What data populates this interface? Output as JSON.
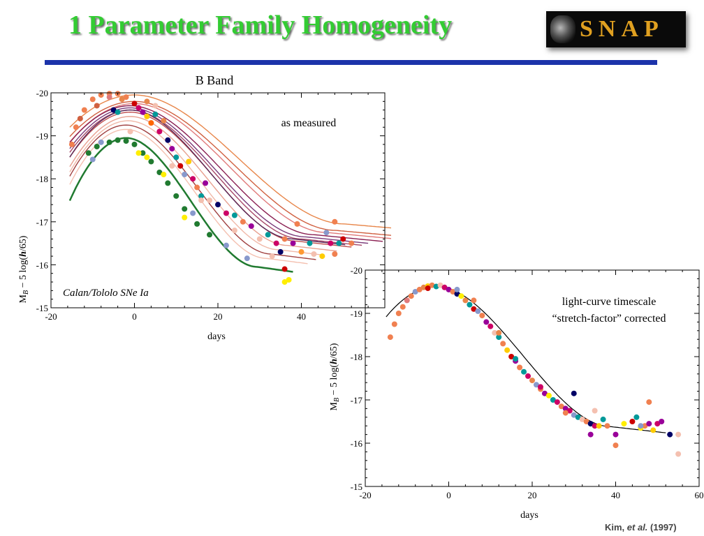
{
  "slide": {
    "title": "1 Parameter Family Homogeneity",
    "logo_text": "SNAP",
    "title_color": "#33cc33",
    "rule_color": "#1c33aa",
    "citation_author": "Kim, ",
    "citation_etal": "et al.",
    "citation_year": " (1997)"
  },
  "chart_data": [
    {
      "type": "scatter",
      "title": "B Band",
      "annotation": "as measured",
      "inset_label": "Calan/Tololo SNe Ia",
      "xlabel": "days",
      "ylabel": "M_B − 5 log(h/65)",
      "xlim": [
        -20,
        60
      ],
      "ylim": [
        -15,
        -20
      ],
      "xticks": [
        "-20",
        "0",
        "20",
        "40"
      ],
      "yticks": [
        "-20",
        "-19",
        "-18",
        "-17",
        "-16",
        "-15"
      ],
      "curves": [
        {
          "color": "#e8864a",
          "peak": -19.95,
          "t0": 0.0,
          "s": 1.2
        },
        {
          "color": "#d06040",
          "peak": -19.8,
          "t0": 0.0,
          "s": 1.15
        },
        {
          "color": "#e07a7a",
          "peak": -19.75,
          "t0": 0.0,
          "s": 1.1
        },
        {
          "color": "#8a1f52",
          "peak": -19.7,
          "t0": -1.0,
          "s": 1.05
        },
        {
          "color": "#7a3a7a",
          "peak": -19.65,
          "t0": -1.0,
          "s": 1.0
        },
        {
          "color": "#a84a6a",
          "peak": -19.6,
          "t0": -1.0,
          "s": 0.98
        },
        {
          "color": "#c05050",
          "peak": -19.55,
          "t0": -1.0,
          "s": 0.95
        },
        {
          "color": "#5a2a5a",
          "peak": -19.6,
          "t0": -1.0,
          "s": 0.93
        },
        {
          "color": "#e8a090",
          "peak": -19.45,
          "t0": -1.0,
          "s": 0.9
        },
        {
          "color": "#f0b8a8",
          "peak": -19.35,
          "t0": -1.5,
          "s": 0.86
        },
        {
          "color": "#a04040",
          "peak": -19.25,
          "t0": -2.0,
          "s": 0.83
        },
        {
          "color": "#f4c0b0",
          "peak": -19.15,
          "t0": -2.0,
          "s": 0.8
        },
        {
          "color": "#207a30",
          "peak": -18.95,
          "t0": -2.0,
          "s": 0.75
        }
      ],
      "points": [
        {
          "x": -15,
          "y": -18.8,
          "c": "#f08050"
        },
        {
          "x": -14,
          "y": -19.2,
          "c": "#f08050"
        },
        {
          "x": -12,
          "y": -19.6,
          "c": "#f08050"
        },
        {
          "x": -10,
          "y": -19.85,
          "c": "#f08050"
        },
        {
          "x": -8,
          "y": -19.95,
          "c": "#f08050"
        },
        {
          "x": -6,
          "y": -19.98,
          "c": "#f08050"
        },
        {
          "x": -4,
          "y": -19.98,
          "c": "#f08050"
        },
        {
          "x": -2,
          "y": -19.9,
          "c": "#f08050"
        },
        {
          "x": -13,
          "y": -19.4,
          "c": "#d06040"
        },
        {
          "x": -9,
          "y": -19.7,
          "c": "#d06040"
        },
        {
          "x": -6,
          "y": -19.9,
          "c": "#e07a7a"
        },
        {
          "x": -3,
          "y": -19.85,
          "c": "#e8864a"
        },
        {
          "x": -5,
          "y": -19.6,
          "c": "#000066"
        },
        {
          "x": -4,
          "y": -19.55,
          "c": "#009999"
        },
        {
          "x": 0,
          "y": -19.75,
          "c": "#cc0000"
        },
        {
          "x": 1,
          "y": -19.65,
          "c": "#cc0066"
        },
        {
          "x": 2,
          "y": -19.55,
          "c": "#990099"
        },
        {
          "x": 3,
          "y": -19.45,
          "c": "#ffcc00"
        },
        {
          "x": 4,
          "y": -19.3,
          "c": "#ff6600"
        },
        {
          "x": 5,
          "y": -19.5,
          "c": "#009999"
        },
        {
          "x": 6,
          "y": -19.1,
          "c": "#cc0066"
        },
        {
          "x": 7,
          "y": -19.35,
          "c": "#e8864a"
        },
        {
          "x": 5,
          "y": -19.7,
          "c": "#f4c0b0"
        },
        {
          "x": 3,
          "y": -19.8,
          "c": "#e8864a"
        },
        {
          "x": 8,
          "y": -18.9,
          "c": "#000066"
        },
        {
          "x": 9,
          "y": -18.7,
          "c": "#990099"
        },
        {
          "x": 10,
          "y": -18.5,
          "c": "#009999"
        },
        {
          "x": 11,
          "y": -18.3,
          "c": "#cc0000"
        },
        {
          "x": 12,
          "y": -18.1,
          "c": "#8899cc"
        },
        {
          "x": 13,
          "y": -18.4,
          "c": "#ffcc00"
        },
        {
          "x": 14,
          "y": -18.0,
          "c": "#cc0066"
        },
        {
          "x": 15,
          "y": -17.8,
          "c": "#f08050"
        },
        {
          "x": 16,
          "y": -17.6,
          "c": "#009999"
        },
        {
          "x": 17,
          "y": -17.9,
          "c": "#990099"
        },
        {
          "x": 18,
          "y": -17.5,
          "c": "#f4c0b0"
        },
        {
          "x": 20,
          "y": -17.4,
          "c": "#000066"
        },
        {
          "x": 22,
          "y": -17.2,
          "c": "#cc0066"
        },
        {
          "x": 24,
          "y": -17.15,
          "c": "#009999"
        },
        {
          "x": 26,
          "y": -17.0,
          "c": "#f08050"
        },
        {
          "x": 28,
          "y": -16.9,
          "c": "#990099"
        },
        {
          "x": 30,
          "y": -16.6,
          "c": "#f4c0b0"
        },
        {
          "x": 32,
          "y": -16.7,
          "c": "#009999"
        },
        {
          "x": 34,
          "y": -16.5,
          "c": "#cc0066"
        },
        {
          "x": 35,
          "y": -16.3,
          "c": "#000066"
        },
        {
          "x": 36,
          "y": -16.6,
          "c": "#f08050"
        },
        {
          "x": 33,
          "y": -16.2,
          "c": "#f4c0b0"
        },
        {
          "x": 36,
          "y": -15.9,
          "c": "#cc0000"
        },
        {
          "x": 37,
          "y": -15.65,
          "c": "#ffee00"
        },
        {
          "x": 36,
          "y": -15.6,
          "c": "#ffee00"
        },
        {
          "x": 38,
          "y": -16.5,
          "c": "#990099"
        },
        {
          "x": 39,
          "y": -16.95,
          "c": "#f08050"
        },
        {
          "x": 40,
          "y": -16.3,
          "c": "#ff9933"
        },
        {
          "x": 42,
          "y": -16.5,
          "c": "#009999"
        },
        {
          "x": 43,
          "y": -16.25,
          "c": "#f4c0b0"
        },
        {
          "x": 45,
          "y": -16.2,
          "c": "#ffcc00"
        },
        {
          "x": 46,
          "y": -16.75,
          "c": "#8899cc"
        },
        {
          "x": 47,
          "y": -16.5,
          "c": "#cc0066"
        },
        {
          "x": 48,
          "y": -16.25,
          "c": "#f08050"
        },
        {
          "x": 49,
          "y": -16.5,
          "c": "#009999"
        },
        {
          "x": 50,
          "y": -16.6,
          "c": "#cc0000"
        },
        {
          "x": 48,
          "y": -17.0,
          "c": "#f08050"
        },
        {
          "x": 52,
          "y": -16.5,
          "c": "#f08050"
        },
        {
          "x": -11,
          "y": -18.6,
          "c": "#207a30"
        },
        {
          "x": -9,
          "y": -18.75,
          "c": "#207a30"
        },
        {
          "x": -6,
          "y": -18.85,
          "c": "#207a30"
        },
        {
          "x": -4,
          "y": -18.9,
          "c": "#207a30"
        },
        {
          "x": -2,
          "y": -18.88,
          "c": "#207a30"
        },
        {
          "x": 0,
          "y": -18.8,
          "c": "#207a30"
        },
        {
          "x": 2,
          "y": -18.6,
          "c": "#207a30"
        },
        {
          "x": 4,
          "y": -18.4,
          "c": "#207a30"
        },
        {
          "x": 6,
          "y": -18.15,
          "c": "#207a30"
        },
        {
          "x": 8,
          "y": -17.9,
          "c": "#207a30"
        },
        {
          "x": 10,
          "y": -17.6,
          "c": "#207a30"
        },
        {
          "x": 12,
          "y": -17.3,
          "c": "#207a30"
        },
        {
          "x": 15,
          "y": -16.95,
          "c": "#207a30"
        },
        {
          "x": 18,
          "y": -16.7,
          "c": "#207a30"
        },
        {
          "x": -8,
          "y": -18.85,
          "c": "#8899cc"
        },
        {
          "x": -10,
          "y": -18.45,
          "c": "#8899cc"
        },
        {
          "x": 14,
          "y": -17.2,
          "c": "#8899cc"
        },
        {
          "x": 22,
          "y": -16.45,
          "c": "#8899cc"
        },
        {
          "x": 27,
          "y": -16.15,
          "c": "#8899cc"
        },
        {
          "x": 1,
          "y": -18.6,
          "c": "#ffee00"
        },
        {
          "x": 3,
          "y": -18.5,
          "c": "#ffee00"
        },
        {
          "x": 7,
          "y": -18.1,
          "c": "#ffee00"
        },
        {
          "x": 12,
          "y": -17.1,
          "c": "#ffee00"
        },
        {
          "x": -1,
          "y": -19.1,
          "c": "#f4c0b0"
        },
        {
          "x": 9,
          "y": -18.3,
          "c": "#f4c0b0"
        },
        {
          "x": 16,
          "y": -17.5,
          "c": "#f4c0b0"
        },
        {
          "x": 24,
          "y": -16.8,
          "c": "#f4c0b0"
        }
      ]
    },
    {
      "type": "scatter",
      "annotation_line1": "light-curve timescale",
      "annotation_line2": "“stretch-factor” corrected",
      "xlabel": "days",
      "ylabel": "M_B − 5 log(h/65)",
      "xlim": [
        -20,
        60
      ],
      "ylim": [
        -15,
        -20
      ],
      "xticks": [
        "-20",
        "0",
        "20",
        "40",
        "60"
      ],
      "yticks": [
        "-20",
        "-19",
        "-18",
        "-17",
        "-16",
        "-15"
      ],
      "template_curve": {
        "peak": -19.62,
        "t0": -3.0,
        "start": -15,
        "end": 52
      },
      "points": [
        {
          "x": -14,
          "y": -18.45,
          "c": "#f08050"
        },
        {
          "x": -13,
          "y": -18.75,
          "c": "#f08050"
        },
        {
          "x": -12,
          "y": -19.0,
          "c": "#f08050"
        },
        {
          "x": -11,
          "y": -19.15,
          "c": "#f08050"
        },
        {
          "x": -10,
          "y": -19.3,
          "c": "#e07a7a"
        },
        {
          "x": -9,
          "y": -19.4,
          "c": "#f08050"
        },
        {
          "x": -8,
          "y": -19.5,
          "c": "#8899cc"
        },
        {
          "x": -7,
          "y": -19.55,
          "c": "#f08050"
        },
        {
          "x": -6,
          "y": -19.6,
          "c": "#e8864a"
        },
        {
          "x": -5,
          "y": -19.63,
          "c": "#ffcc00"
        },
        {
          "x": -4,
          "y": -19.65,
          "c": "#f08050"
        },
        {
          "x": -3,
          "y": -19.62,
          "c": "#009999"
        },
        {
          "x": -2,
          "y": -19.65,
          "c": "#f4c0b0"
        },
        {
          "x": -1,
          "y": -19.6,
          "c": "#cc0066"
        },
        {
          "x": 0,
          "y": -19.55,
          "c": "#990099"
        },
        {
          "x": 1,
          "y": -19.5,
          "c": "#f08050"
        },
        {
          "x": 2,
          "y": -19.45,
          "c": "#000066"
        },
        {
          "x": 3,
          "y": -19.4,
          "c": "#ffee00"
        },
        {
          "x": 4,
          "y": -19.3,
          "c": "#e8864a"
        },
        {
          "x": 5,
          "y": -19.2,
          "c": "#009999"
        },
        {
          "x": 6,
          "y": -19.1,
          "c": "#cc0000"
        },
        {
          "x": 7,
          "y": -19.05,
          "c": "#8899cc"
        },
        {
          "x": 8,
          "y": -18.95,
          "c": "#f08050"
        },
        {
          "x": 9,
          "y": -18.8,
          "c": "#990099"
        },
        {
          "x": 10,
          "y": -18.7,
          "c": "#cc0066"
        },
        {
          "x": 11,
          "y": -18.55,
          "c": "#f4c0b0"
        },
        {
          "x": 12,
          "y": -18.45,
          "c": "#009999"
        },
        {
          "x": 13,
          "y": -18.3,
          "c": "#f08050"
        },
        {
          "x": 14,
          "y": -18.15,
          "c": "#ffcc00"
        },
        {
          "x": 15,
          "y": -18.0,
          "c": "#cc0000"
        },
        {
          "x": 16,
          "y": -17.9,
          "c": "#990099"
        },
        {
          "x": 17,
          "y": -17.75,
          "c": "#f08050"
        },
        {
          "x": 18,
          "y": -17.65,
          "c": "#009999"
        },
        {
          "x": 19,
          "y": -17.55,
          "c": "#cc0066"
        },
        {
          "x": 20,
          "y": -17.45,
          "c": "#e8864a"
        },
        {
          "x": 21,
          "y": -17.35,
          "c": "#8899cc"
        },
        {
          "x": 22,
          "y": -17.25,
          "c": "#f08050"
        },
        {
          "x": 23,
          "y": -17.15,
          "c": "#990099"
        },
        {
          "x": 24,
          "y": -17.1,
          "c": "#ffee00"
        },
        {
          "x": 25,
          "y": -17.0,
          "c": "#009999"
        },
        {
          "x": 26,
          "y": -16.95,
          "c": "#cc0066"
        },
        {
          "x": 27,
          "y": -16.85,
          "c": "#f08050"
        },
        {
          "x": 28,
          "y": -16.8,
          "c": "#990099"
        },
        {
          "x": 29,
          "y": -16.75,
          "c": "#cc0066"
        },
        {
          "x": 30,
          "y": -16.65,
          "c": "#8899cc"
        },
        {
          "x": 31,
          "y": -16.6,
          "c": "#009999"
        },
        {
          "x": 32,
          "y": -16.55,
          "c": "#f4c0b0"
        },
        {
          "x": 33,
          "y": -16.5,
          "c": "#f08050"
        },
        {
          "x": 34,
          "y": -16.45,
          "c": "#000066"
        },
        {
          "x": 35,
          "y": -16.4,
          "c": "#cc0066"
        },
        {
          "x": 36,
          "y": -16.4,
          "c": "#ffcc00"
        },
        {
          "x": 30,
          "y": -17.15,
          "c": "#000066"
        },
        {
          "x": 35,
          "y": -16.75,
          "c": "#f4c0b0"
        },
        {
          "x": 34,
          "y": -16.2,
          "c": "#990099"
        },
        {
          "x": 37,
          "y": -16.55,
          "c": "#009999"
        },
        {
          "x": 38,
          "y": -16.4,
          "c": "#f08050"
        },
        {
          "x": 40,
          "y": -16.2,
          "c": "#990099"
        },
        {
          "x": 40,
          "y": -15.95,
          "c": "#f08050"
        },
        {
          "x": 42,
          "y": -16.45,
          "c": "#ffee00"
        },
        {
          "x": 44,
          "y": -16.5,
          "c": "#cc0000"
        },
        {
          "x": 45,
          "y": -16.6,
          "c": "#009999"
        },
        {
          "x": 46,
          "y": -16.35,
          "c": "#ffee00"
        },
        {
          "x": 47,
          "y": -16.4,
          "c": "#f08050"
        },
        {
          "x": 48,
          "y": -16.45,
          "c": "#990099"
        },
        {
          "x": 48,
          "y": -16.95,
          "c": "#f08050"
        },
        {
          "x": 49,
          "y": -16.3,
          "c": "#ffcc00"
        },
        {
          "x": 50,
          "y": -16.45,
          "c": "#cc0066"
        },
        {
          "x": 51,
          "y": -16.5,
          "c": "#990099"
        },
        {
          "x": 53,
          "y": -16.2,
          "c": "#000066"
        },
        {
          "x": 55,
          "y": -16.2,
          "c": "#f4c0b0"
        },
        {
          "x": 55,
          "y": -15.75,
          "c": "#f4c0b0"
        },
        {
          "x": 46,
          "y": -16.4,
          "c": "#8899cc"
        },
        {
          "x": -5,
          "y": -19.58,
          "c": "#cc0000"
        },
        {
          "x": 2,
          "y": -19.55,
          "c": "#8899cc"
        },
        {
          "x": 6,
          "y": -19.3,
          "c": "#f08050"
        },
        {
          "x": 12,
          "y": -18.55,
          "c": "#e8864a"
        },
        {
          "x": 16,
          "y": -17.95,
          "c": "#009999"
        },
        {
          "x": 22,
          "y": -17.3,
          "c": "#cc0066"
        },
        {
          "x": 28,
          "y": -16.7,
          "c": "#f08050"
        }
      ]
    }
  ]
}
